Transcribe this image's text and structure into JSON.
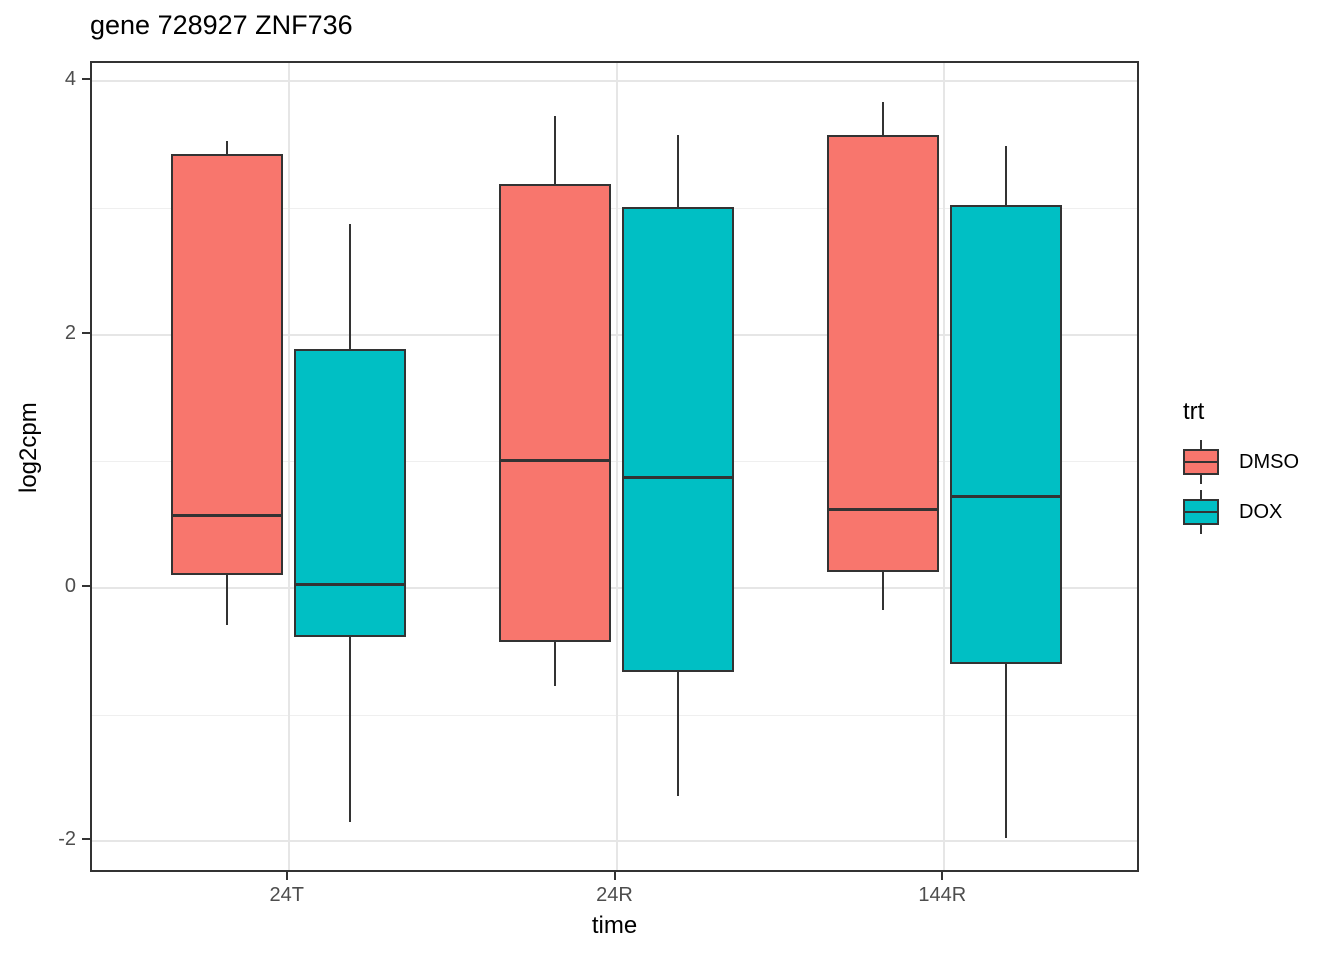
{
  "title": "gene 728927 ZNF736",
  "axes": {
    "x": {
      "label": "time",
      "categories": [
        "24T",
        "24R",
        "144R"
      ]
    },
    "y": {
      "label": "log2cpm",
      "major_ticks": [
        4,
        2,
        0,
        -2
      ],
      "minor_ticks": [
        3,
        1,
        -1
      ]
    }
  },
  "legend": {
    "title": "trt",
    "entries": [
      {
        "label": "DMSO",
        "color": "#F8766D"
      },
      {
        "label": "DOX",
        "color": "#00BFC4"
      }
    ]
  },
  "style_colors": {
    "dmso_fill": "#F8766D",
    "dox_fill": "#00BFC4",
    "box_stroke": "#333333",
    "grid_major": "#e6e6e6",
    "grid_minor": "#efefef",
    "tick_text": "#4d4d4d"
  },
  "chart_data": {
    "type": "boxplot",
    "title": "gene 728927 ZNF736",
    "xlabel": "time",
    "ylabel": "log2cpm",
    "categories": [
      "24T",
      "24R",
      "144R"
    ],
    "ylim": [
      -2.26,
      4.15
    ],
    "y_major_ticks": [
      4,
      2,
      0,
      -2
    ],
    "y_minor_ticks": [
      3,
      1,
      -1
    ],
    "grid": true,
    "legend_position": "right",
    "legend_title": "trt",
    "series": [
      {
        "name": "DMSO",
        "color": "#F8766D",
        "boxes": [
          {
            "category": "24T",
            "min": -0.29,
            "q1": 0.1,
            "median": 0.58,
            "q3": 3.43,
            "max": 3.53
          },
          {
            "category": "24R",
            "min": -0.77,
            "q1": -0.43,
            "median": 1.01,
            "q3": 3.19,
            "max": 3.73
          },
          {
            "category": "144R",
            "min": -0.17,
            "q1": 0.13,
            "median": 0.62,
            "q3": 3.58,
            "max": 3.84
          }
        ]
      },
      {
        "name": "DOX",
        "color": "#00BFC4",
        "boxes": [
          {
            "category": "24T",
            "min": -1.85,
            "q1": -0.39,
            "median": 0.03,
            "q3": 1.89,
            "max": 2.87
          },
          {
            "category": "24R",
            "min": -1.64,
            "q1": -0.66,
            "median": 0.88,
            "q3": 3.01,
            "max": 3.58
          },
          {
            "category": "144R",
            "min": -1.97,
            "q1": -0.6,
            "median": 0.73,
            "q3": 3.02,
            "max": 3.49
          }
        ]
      }
    ]
  }
}
